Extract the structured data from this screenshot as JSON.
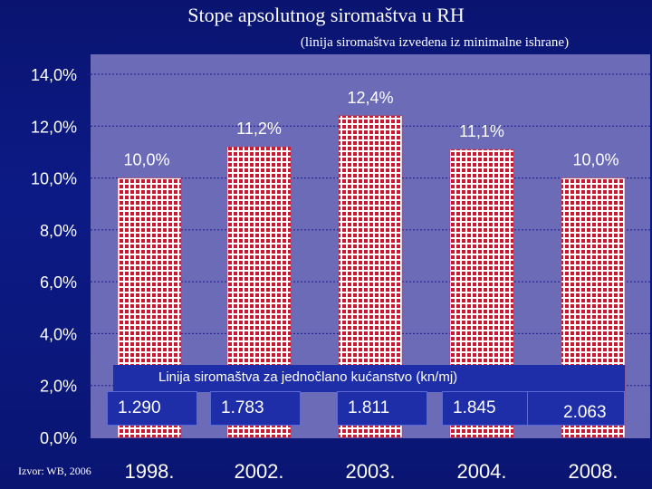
{
  "title": "Stope apsolutnog siromaštva u RH",
  "subtitle": "(linija siromaštva izvedena iz minimalne ishrane)",
  "chart_data": {
    "type": "bar",
    "categories": [
      "1998.",
      "2002.",
      "2003.",
      "2004.",
      "2008."
    ],
    "values": [
      10.0,
      11.2,
      12.4,
      11.1,
      10.0
    ],
    "data_labels": [
      "10,0%",
      "11,2%",
      "12,4%",
      "11,1%",
      "10,0%"
    ],
    "y_ticks": [
      "0,0%",
      "2,0%",
      "4,0%",
      "6,0%",
      "8,0%",
      "10,0%",
      "12,0%",
      "14,0%"
    ],
    "ylim": [
      0,
      14
    ],
    "grid": true,
    "xlabel": "",
    "ylabel": ""
  },
  "poverty_line": {
    "label": "Linija siromaštva za jednočlano kućanstvo (kn/mj)",
    "values": [
      "1.290",
      "1.783",
      "1.811",
      "1.845",
      "2.063"
    ]
  },
  "source": "Izvor: WB, 2006",
  "colors": {
    "plot_bg": "#6b6bb8",
    "bar_base": "#ffffff",
    "bar_pattern": "#c91830",
    "grid": "#1a1a90",
    "text": "#ffffff"
  }
}
